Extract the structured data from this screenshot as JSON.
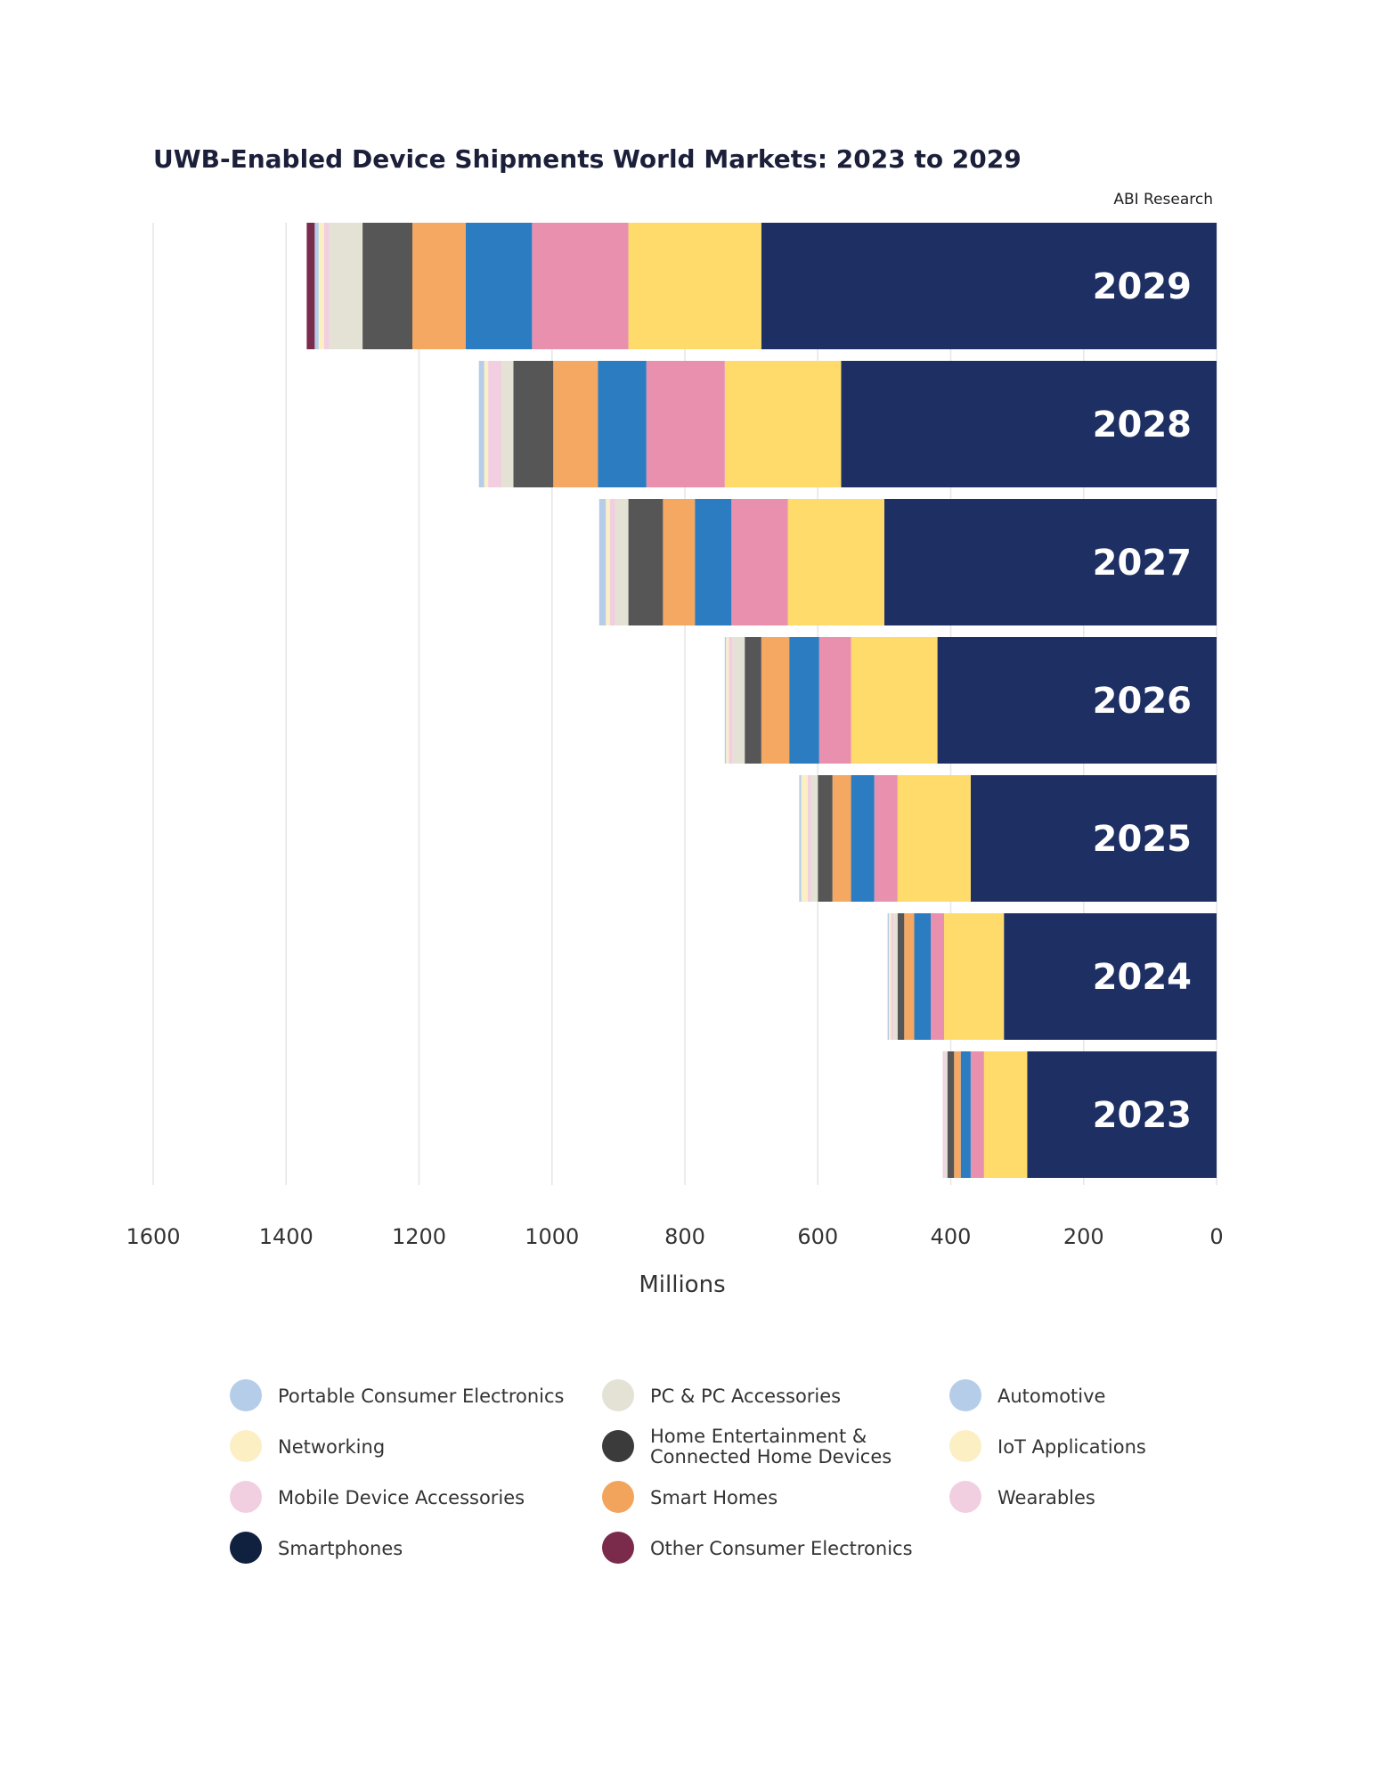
{
  "chart_data": {
    "type": "bar",
    "orientation": "horizontal-stacked",
    "title": "UWB-Enabled Device Shipments World Markets: 2023 to 2029",
    "source": "ABI Research",
    "xlabel": "Millions",
    "xlim": [
      0,
      1600
    ],
    "xaxis_reversed": true,
    "x_ticks": [
      "1600",
      "1400",
      "1200",
      "1000",
      "800",
      "600",
      "400",
      "200",
      "0"
    ],
    "grid": true,
    "legend_position": "bottom",
    "categories": [
      "2029",
      "2028",
      "2027",
      "2026",
      "2025",
      "2024",
      "2023"
    ],
    "series": [
      {
        "name": "Smartphones",
        "color": "#1e2f63",
        "values": [
          685,
          565,
          500,
          420,
          370,
          320,
          285
        ]
      },
      {
        "name": "IoT Applications",
        "color": "#fedb6b",
        "values": [
          200,
          175,
          145,
          130,
          110,
          90,
          65
        ]
      },
      {
        "name": "Wearables",
        "color": "#e990ae",
        "values": [
          145,
          118,
          85,
          48,
          35,
          20,
          20
        ]
      },
      {
        "name": "Automotive",
        "color": "#2b7cc1",
        "values": [
          100,
          73,
          55,
          45,
          35,
          25,
          15
        ]
      },
      {
        "name": "Smart Homes",
        "color": "#f5a862",
        "values": [
          80,
          67,
          48,
          42,
          28,
          15,
          10
        ]
      },
      {
        "name": "Home Entertainment & Connected Home Devices",
        "color": "#575656",
        "values": [
          75,
          60,
          52,
          25,
          22,
          10,
          10
        ]
      },
      {
        "name": "PC & PC Accessories",
        "color": "#e4e1d5",
        "values": [
          50,
          18,
          20,
          18,
          10,
          6,
          4
        ]
      },
      {
        "name": "Mobile Device Accessories",
        "color": "#f2cfe0",
        "values": [
          8,
          20,
          8,
          6,
          5,
          4,
          3
        ]
      },
      {
        "name": "Networking",
        "color": "#fcefc4",
        "values": [
          8,
          6,
          6,
          4,
          10,
          3,
          0
        ]
      },
      {
        "name": "Portable Consumer Electronics",
        "color": "#b5cde8",
        "values": [
          6,
          8,
          10,
          2,
          3,
          2,
          0
        ]
      },
      {
        "name": "Other Consumer Electronics",
        "color": "#7a2a4a",
        "values": [
          12,
          0,
          0,
          0,
          0,
          0,
          0
        ]
      }
    ],
    "legend": [
      {
        "name": "Portable Consumer Electronics",
        "color": "#b5cde8"
      },
      {
        "name": "PC & PC Accessories",
        "color": "#e4e1d5"
      },
      {
        "name": "Automotive",
        "color": "#b5cde8"
      },
      {
        "name": "Networking",
        "color": "#fcefc4"
      },
      {
        "name": "Home Entertainment & Connected Home Devices",
        "lines": [
          "Home Entertainment &",
          "Connected Home Devices"
        ],
        "color": "#3b3b3b"
      },
      {
        "name": "IoT Applications",
        "color": "#fcefc4"
      },
      {
        "name": "Mobile Device Accessories",
        "color": "#f2cfe0"
      },
      {
        "name": "Smart Homes",
        "color": "#f3a45c"
      },
      {
        "name": "Wearables",
        "color": "#f2cfe0"
      },
      {
        "name": "Smartphones",
        "color": "#10203f"
      },
      {
        "name": "Other Consumer Electronics",
        "color": "#7a2a4a"
      }
    ]
  }
}
